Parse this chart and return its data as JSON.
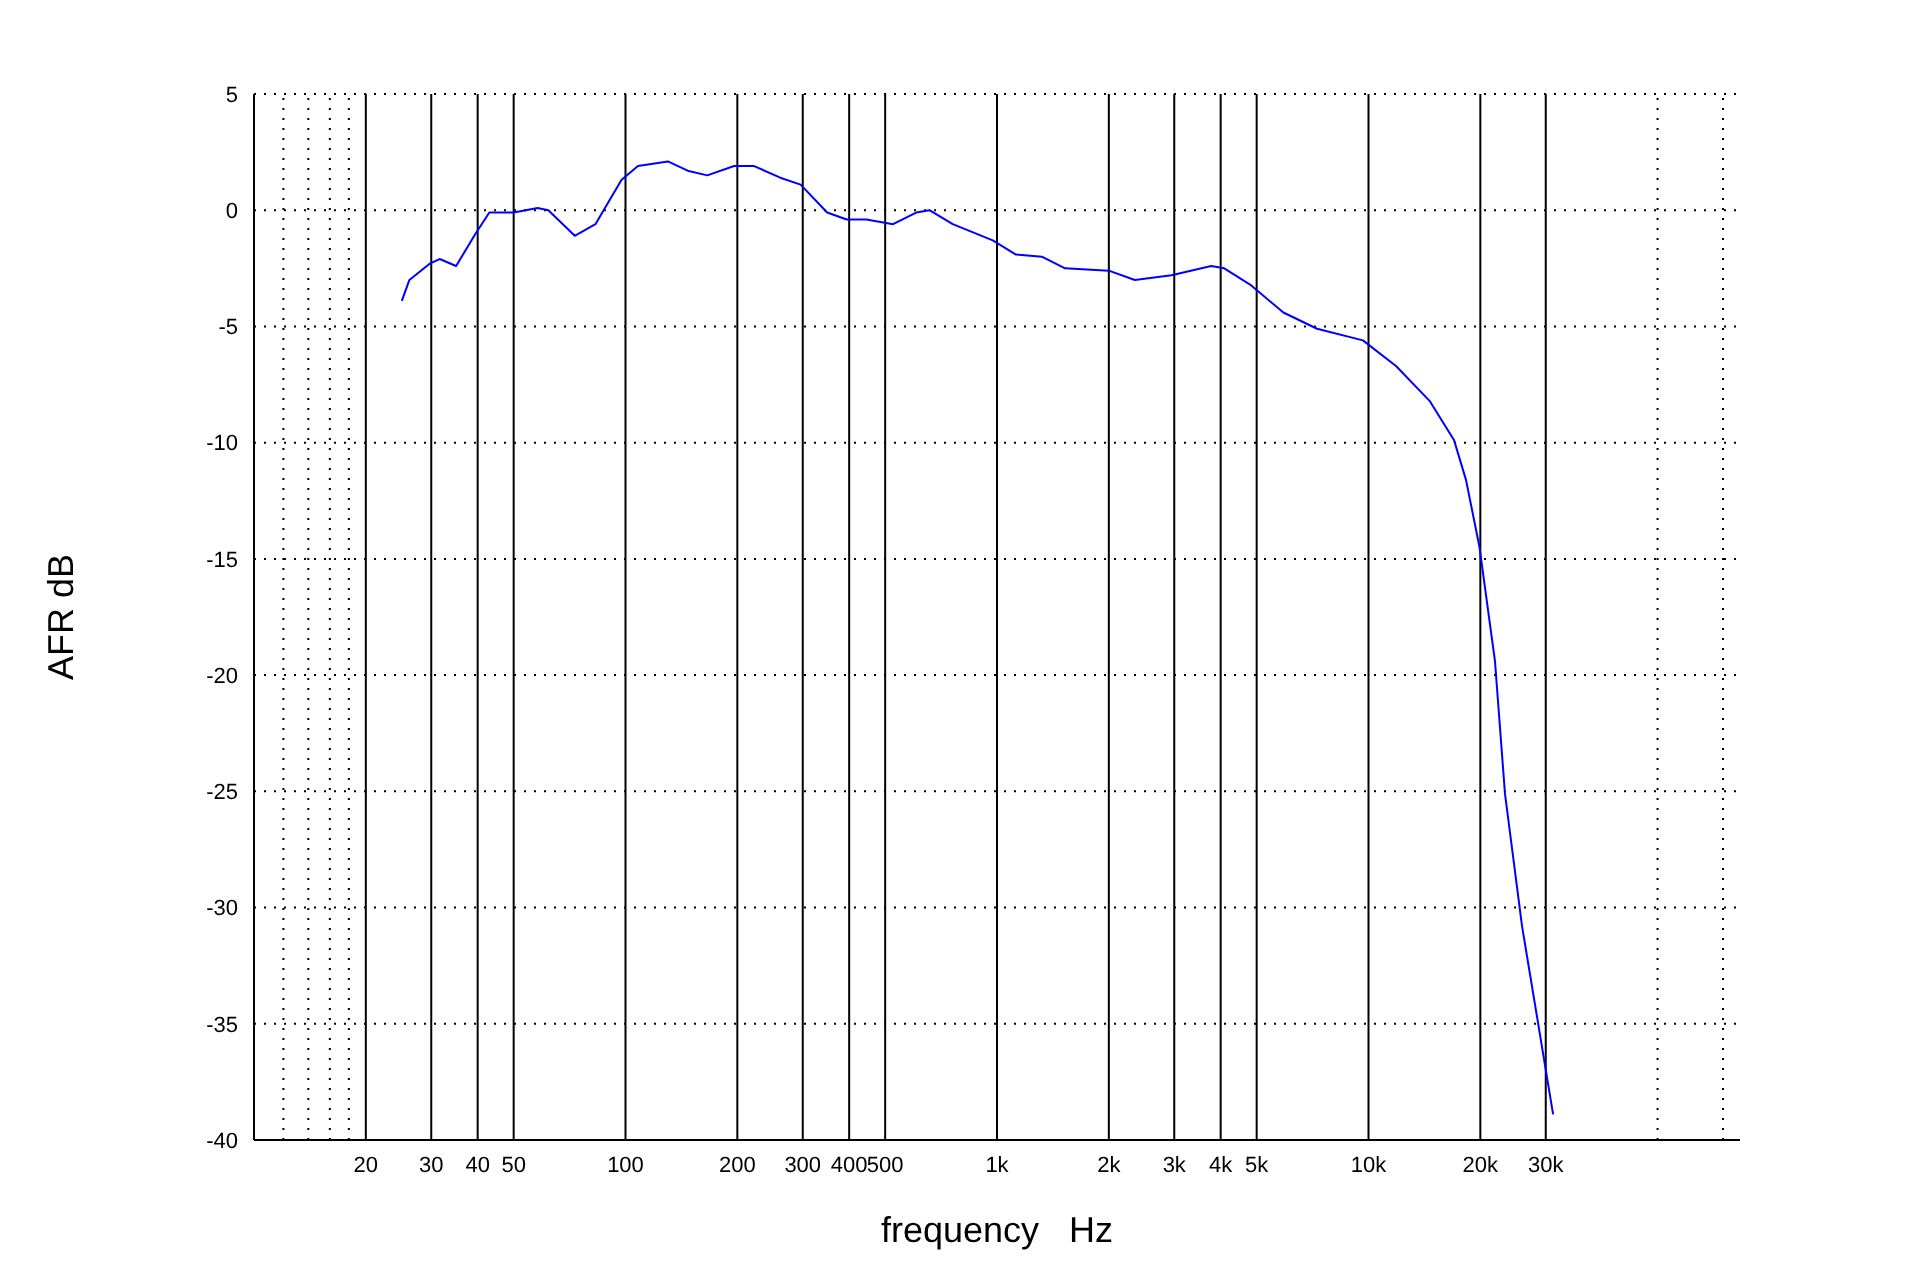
{
  "chart_data": {
    "type": "line",
    "xlabel": "frequency   Hz",
    "ylabel": "AFR dB",
    "log": "x",
    "grid": true,
    "legend": false,
    "marker": "none",
    "line_style": "solid",
    "xlim": [
      10,
      100000
    ],
    "ylim": [
      -40,
      5
    ],
    "xticks": [
      {
        "value": 12,
        "label": null
      },
      {
        "value": 14,
        "label": null
      },
      {
        "value": 16,
        "label": null
      },
      {
        "value": 18,
        "label": null
      },
      20,
      30,
      40,
      50,
      100,
      200,
      300,
      400,
      500,
      {
        "value": 1000,
        "label": "1k"
      },
      {
        "value": 2000,
        "label": "2k"
      },
      {
        "value": 3000,
        "label": "3k"
      },
      {
        "value": 4000,
        "label": "4k"
      },
      {
        "value": 5000,
        "label": "5k"
      },
      {
        "value": 10000,
        "label": "10k"
      },
      {
        "value": 20000,
        "label": "20k"
      },
      {
        "value": 30000,
        "label": "30k"
      },
      {
        "value": 60000,
        "label": null
      },
      {
        "value": 90000,
        "label": null
      }
    ],
    "yticks": [
      -40,
      -35,
      -30,
      -25,
      -20,
      -15,
      -10,
      -5,
      0,
      5
    ],
    "series": [
      {
        "color": "#0000ff",
        "x": [
          25,
          26.2,
          29.7,
          31.6,
          35,
          39.5,
          43,
          50,
          58,
          62,
          73,
          83,
          97.5,
          108,
          130,
          147,
          166,
          196,
          222,
          261,
          296,
          349,
          394,
          445,
          525,
          606,
          658,
          760,
          974,
          1122,
          1320,
          1525,
          2000,
          2350,
          2950,
          3770,
          4090,
          4800,
          5900,
          7270,
          9660,
          11860,
          14600,
          17000,
          18300,
          19900,
          21900,
          23300,
          25900,
          28900,
          31400
        ],
        "values": [
          -3.9,
          -3.0,
          -2.3,
          -2.1,
          -2.4,
          -1.0,
          -0.1,
          -0.1,
          0.1,
          0,
          -1.1,
          -0.6,
          1.3,
          1.9,
          2.1,
          1.7,
          1.5,
          1.9,
          1.9,
          1.4,
          1.1,
          -0.1,
          -0.4,
          -0.4,
          -0.6,
          -0.1,
          0,
          -0.6,
          -1.3,
          -1.9,
          -2.0,
          -2.5,
          -2.6,
          -3.0,
          -2.8,
          -2.4,
          -2.5,
          -3.2,
          -4.4,
          -5.1,
          -5.6,
          -6.7,
          -8.2,
          -9.9,
          -11.6,
          -14.5,
          -19.4,
          -25.1,
          -30.8,
          -35.4,
          -38.9
        ]
      }
    ]
  }
}
